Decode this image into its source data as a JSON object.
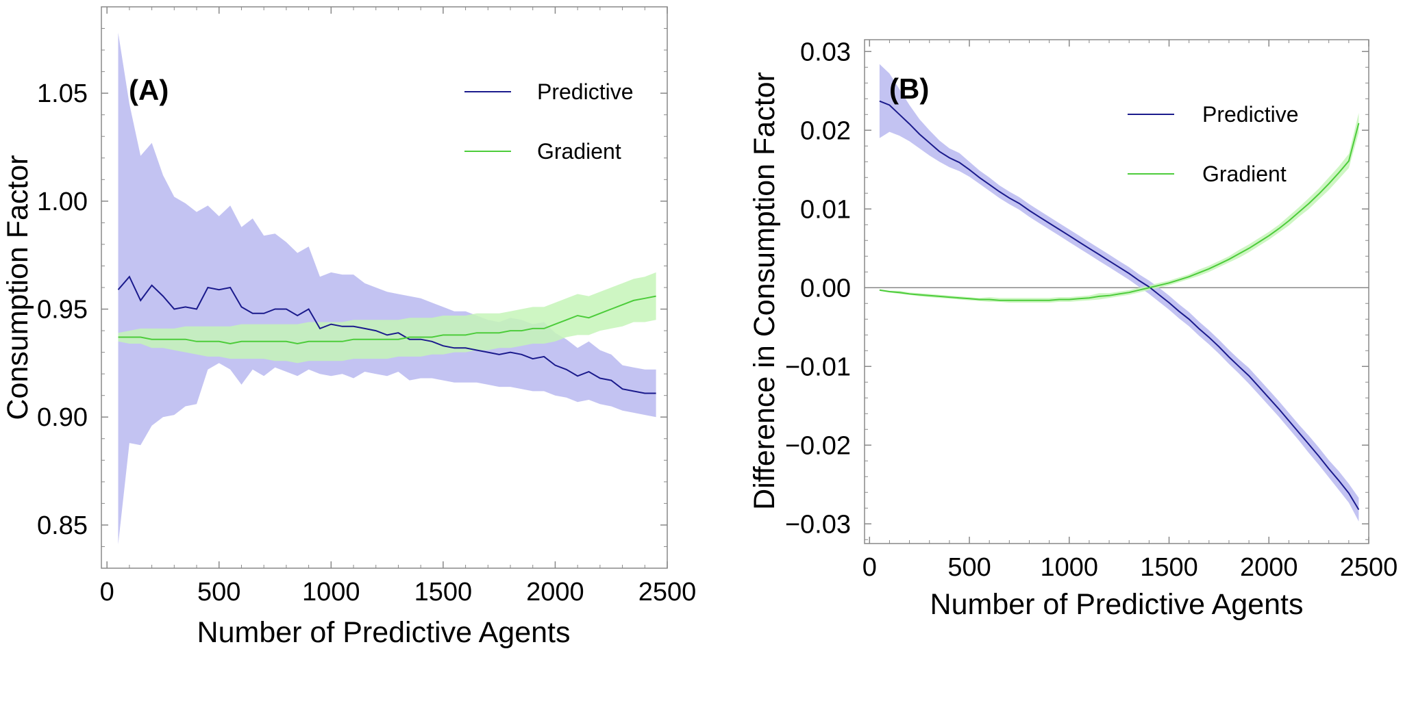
{
  "chart_data": [
    {
      "type": "line",
      "panel_label": "(A)",
      "xlabel": "Number of Predictive Agents",
      "ylabel": "Consumption Factor",
      "xlim": [
        -25,
        2500
      ],
      "ylim": [
        0.83,
        1.09
      ],
      "x_ticks": [
        0,
        500,
        1000,
        1500,
        2000,
        2500
      ],
      "x_tick_labels": [
        "0",
        "500",
        "1000",
        "1500",
        "2000",
        "2500"
      ],
      "y_ticks": [
        0.85,
        0.9,
        0.95,
        1.0,
        1.05
      ],
      "y_tick_labels": [
        "0.85",
        "0.90",
        "0.95",
        "1.00",
        "1.05"
      ],
      "legend_position": "top-right",
      "x": [
        50,
        100,
        150,
        200,
        250,
        300,
        350,
        400,
        450,
        500,
        550,
        600,
        650,
        700,
        750,
        800,
        850,
        900,
        950,
        1000,
        1050,
        1100,
        1150,
        1200,
        1250,
        1300,
        1350,
        1400,
        1450,
        1500,
        1550,
        1600,
        1650,
        1700,
        1750,
        1800,
        1850,
        1900,
        1950,
        2000,
        2050,
        2100,
        2150,
        2200,
        2250,
        2300,
        2350,
        2400,
        2450
      ],
      "series": [
        {
          "name": "Predictive",
          "color": "#1a1a8c",
          "band_color": "#b8b8f0",
          "values": [
            0.959,
            0.965,
            0.954,
            0.961,
            0.956,
            0.95,
            0.951,
            0.95,
            0.96,
            0.959,
            0.96,
            0.951,
            0.948,
            0.948,
            0.95,
            0.95,
            0.947,
            0.95,
            0.941,
            0.943,
            0.942,
            0.942,
            0.941,
            0.94,
            0.938,
            0.939,
            0.936,
            0.936,
            0.935,
            0.933,
            0.932,
            0.932,
            0.931,
            0.93,
            0.929,
            0.93,
            0.929,
            0.927,
            0.928,
            0.924,
            0.922,
            0.919,
            0.921,
            0.918,
            0.917,
            0.913,
            0.912,
            0.911,
            0.911
          ],
          "lower": [
            0.841,
            0.888,
            0.887,
            0.896,
            0.9,
            0.901,
            0.905,
            0.906,
            0.922,
            0.925,
            0.922,
            0.915,
            0.922,
            0.919,
            0.923,
            0.921,
            0.919,
            0.922,
            0.92,
            0.919,
            0.92,
            0.918,
            0.921,
            0.92,
            0.919,
            0.921,
            0.917,
            0.918,
            0.918,
            0.917,
            0.916,
            0.916,
            0.916,
            0.915,
            0.914,
            0.914,
            0.913,
            0.912,
            0.912,
            0.91,
            0.909,
            0.907,
            0.908,
            0.906,
            0.905,
            0.903,
            0.902,
            0.901,
            0.9
          ],
          "upper": [
            1.078,
            1.045,
            1.021,
            1.027,
            1.012,
            1.002,
            0.999,
            0.995,
            0.998,
            0.993,
            0.998,
            0.988,
            0.992,
            0.984,
            0.985,
            0.981,
            0.976,
            0.979,
            0.965,
            0.967,
            0.966,
            0.966,
            0.962,
            0.96,
            0.958,
            0.957,
            0.956,
            0.955,
            0.953,
            0.951,
            0.949,
            0.949,
            0.947,
            0.945,
            0.944,
            0.946,
            0.945,
            0.943,
            0.944,
            0.939,
            0.936,
            0.932,
            0.935,
            0.931,
            0.929,
            0.924,
            0.923,
            0.922,
            0.922
          ]
        },
        {
          "name": "Gradient",
          "color": "#4ccc3a",
          "band_color": "#c6f5b8",
          "values": [
            0.937,
            0.937,
            0.937,
            0.936,
            0.936,
            0.936,
            0.936,
            0.935,
            0.935,
            0.935,
            0.934,
            0.935,
            0.935,
            0.935,
            0.935,
            0.935,
            0.934,
            0.935,
            0.935,
            0.935,
            0.935,
            0.936,
            0.936,
            0.936,
            0.936,
            0.936,
            0.937,
            0.937,
            0.937,
            0.938,
            0.938,
            0.938,
            0.939,
            0.939,
            0.939,
            0.94,
            0.94,
            0.941,
            0.941,
            0.943,
            0.945,
            0.947,
            0.946,
            0.948,
            0.95,
            0.952,
            0.954,
            0.955,
            0.956
          ],
          "lower": [
            0.935,
            0.934,
            0.934,
            0.932,
            0.932,
            0.931,
            0.93,
            0.929,
            0.928,
            0.928,
            0.927,
            0.927,
            0.927,
            0.927,
            0.926,
            0.926,
            0.925,
            0.926,
            0.926,
            0.926,
            0.926,
            0.927,
            0.927,
            0.927,
            0.927,
            0.928,
            0.928,
            0.928,
            0.929,
            0.929,
            0.93,
            0.93,
            0.931,
            0.931,
            0.932,
            0.932,
            0.933,
            0.934,
            0.934,
            0.935,
            0.937,
            0.938,
            0.938,
            0.94,
            0.941,
            0.942,
            0.944,
            0.944,
            0.945
          ],
          "upper": [
            0.939,
            0.94,
            0.941,
            0.941,
            0.941,
            0.941,
            0.942,
            0.942,
            0.942,
            0.942,
            0.942,
            0.943,
            0.943,
            0.943,
            0.943,
            0.943,
            0.943,
            0.944,
            0.944,
            0.944,
            0.944,
            0.945,
            0.945,
            0.945,
            0.945,
            0.945,
            0.946,
            0.946,
            0.946,
            0.947,
            0.947,
            0.947,
            0.948,
            0.948,
            0.948,
            0.949,
            0.95,
            0.951,
            0.951,
            0.953,
            0.955,
            0.957,
            0.956,
            0.958,
            0.96,
            0.962,
            0.964,
            0.965,
            0.967
          ]
        }
      ]
    },
    {
      "type": "line",
      "panel_label": "(B)",
      "xlabel": "Number of Predictive Agents",
      "ylabel": "Difference in Consumption Factor",
      "xlim": [
        -25,
        2500
      ],
      "ylim": [
        -0.0325,
        0.0315
      ],
      "x_ticks": [
        0,
        500,
        1000,
        1500,
        2000,
        2500
      ],
      "x_tick_labels": [
        "0",
        "500",
        "1000",
        "1500",
        "2000",
        "2500"
      ],
      "y_ticks": [
        -0.03,
        -0.02,
        -0.01,
        0.0,
        0.01,
        0.02,
        0.03
      ],
      "y_tick_labels": [
        "−0.03",
        "−0.02",
        "−0.01",
        "0.00",
        "0.01",
        "0.02",
        "0.03"
      ],
      "zero_line": true,
      "legend_position": "top-right",
      "x": [
        50,
        100,
        150,
        200,
        250,
        300,
        350,
        400,
        450,
        500,
        550,
        600,
        650,
        700,
        750,
        800,
        850,
        900,
        950,
        1000,
        1050,
        1100,
        1150,
        1200,
        1250,
        1300,
        1350,
        1400,
        1450,
        1500,
        1550,
        1600,
        1650,
        1700,
        1750,
        1800,
        1850,
        1900,
        1950,
        2000,
        2050,
        2100,
        2150,
        2200,
        2250,
        2300,
        2350,
        2400,
        2450
      ],
      "series": [
        {
          "name": "Predictive",
          "color": "#1a1a8c",
          "band_color": "#b8b8f0",
          "values": [
            0.0237,
            0.0232,
            0.022,
            0.0208,
            0.0195,
            0.0184,
            0.0173,
            0.0165,
            0.0159,
            0.015,
            0.014,
            0.0131,
            0.0122,
            0.0114,
            0.0107,
            0.0098,
            0.009,
            0.0082,
            0.0074,
            0.0066,
            0.0058,
            0.005,
            0.0042,
            0.0034,
            0.0026,
            0.0018,
            0.0009,
            0.0001,
            -0.0009,
            -0.0019,
            -0.003,
            -0.004,
            -0.0052,
            -0.0063,
            -0.0075,
            -0.0088,
            -0.01,
            -0.0112,
            -0.0126,
            -0.014,
            -0.0154,
            -0.0169,
            -0.0184,
            -0.0199,
            -0.0214,
            -0.023,
            -0.0245,
            -0.0261,
            -0.0282
          ],
          "lower": [
            0.019,
            0.0198,
            0.0193,
            0.0186,
            0.0177,
            0.0168,
            0.016,
            0.0153,
            0.0148,
            0.0141,
            0.0132,
            0.0123,
            0.0114,
            0.0106,
            0.0099,
            0.009,
            0.0082,
            0.0074,
            0.0066,
            0.0058,
            0.005,
            0.0042,
            0.0034,
            0.0026,
            0.0018,
            0.001,
            0.0001,
            -0.0008,
            -0.0018,
            -0.0028,
            -0.0039,
            -0.0049,
            -0.0061,
            -0.0072,
            -0.0084,
            -0.0097,
            -0.0109,
            -0.0122,
            -0.0136,
            -0.015,
            -0.0164,
            -0.0179,
            -0.0194,
            -0.021,
            -0.0225,
            -0.0241,
            -0.0257,
            -0.0273,
            -0.0297
          ],
          "upper": [
            0.0284,
            0.0272,
            0.0252,
            0.0232,
            0.0214,
            0.02,
            0.0187,
            0.0177,
            0.0171,
            0.016,
            0.0149,
            0.014,
            0.013,
            0.0122,
            0.0115,
            0.0106,
            0.0098,
            0.009,
            0.0082,
            0.0074,
            0.0066,
            0.0058,
            0.005,
            0.0042,
            0.0034,
            0.0026,
            0.0017,
            0.0009,
            0.0,
            -0.001,
            -0.0021,
            -0.0031,
            -0.0043,
            -0.0054,
            -0.0066,
            -0.0079,
            -0.0091,
            -0.0102,
            -0.0116,
            -0.013,
            -0.0144,
            -0.0159,
            -0.0174,
            -0.0188,
            -0.0203,
            -0.0219,
            -0.0233,
            -0.0249,
            -0.0267
          ]
        },
        {
          "name": "Gradient",
          "color": "#4ccc3a",
          "band_color": "#c6f5b8",
          "values": [
            -0.0003,
            -0.0005,
            -0.0006,
            -0.0008,
            -0.0009,
            -0.001,
            -0.0011,
            -0.0012,
            -0.0013,
            -0.0014,
            -0.0015,
            -0.0015,
            -0.0016,
            -0.0016,
            -0.0016,
            -0.0016,
            -0.0016,
            -0.0016,
            -0.0015,
            -0.0015,
            -0.0014,
            -0.0013,
            -0.0011,
            -0.001,
            -0.0008,
            -0.0006,
            -0.0003,
            0.0,
            0.0003,
            0.0006,
            0.001,
            0.0014,
            0.0019,
            0.0024,
            0.003,
            0.0036,
            0.0043,
            0.005,
            0.0058,
            0.0066,
            0.0075,
            0.0085,
            0.0096,
            0.0107,
            0.0119,
            0.0132,
            0.0146,
            0.0161,
            0.0209
          ],
          "lower": [
            -0.0004,
            -0.0006,
            -0.0008,
            -0.0009,
            -0.0011,
            -0.0012,
            -0.0013,
            -0.0014,
            -0.0015,
            -0.0016,
            -0.0017,
            -0.0018,
            -0.0018,
            -0.0019,
            -0.0019,
            -0.0019,
            -0.0019,
            -0.0019,
            -0.0018,
            -0.0018,
            -0.0017,
            -0.0016,
            -0.0015,
            -0.0013,
            -0.0011,
            -0.0009,
            -0.0006,
            -0.0003,
            0.0,
            0.0003,
            0.0007,
            0.0011,
            0.0015,
            0.002,
            0.0026,
            0.0032,
            0.0038,
            0.0045,
            0.0053,
            0.0061,
            0.007,
            0.0079,
            0.009,
            0.01,
            0.0112,
            0.0124,
            0.0138,
            0.0152,
            0.0197
          ],
          "upper": [
            -0.0002,
            -0.0004,
            -0.0004,
            -0.0006,
            -0.0007,
            -0.0008,
            -0.0009,
            -0.001,
            -0.0011,
            -0.0012,
            -0.0013,
            -0.0012,
            -0.0013,
            -0.0013,
            -0.0013,
            -0.0013,
            -0.0013,
            -0.0013,
            -0.0012,
            -0.0012,
            -0.0011,
            -0.001,
            -0.0007,
            -0.0007,
            -0.0005,
            -0.0003,
            0.0,
            0.0003,
            0.0006,
            0.0009,
            0.0013,
            0.0017,
            0.0023,
            0.0028,
            0.0034,
            0.004,
            0.0048,
            0.0055,
            0.0063,
            0.0071,
            0.008,
            0.0091,
            0.0102,
            0.0114,
            0.0126,
            0.014,
            0.0154,
            0.017,
            0.0222
          ]
        }
      ]
    }
  ]
}
